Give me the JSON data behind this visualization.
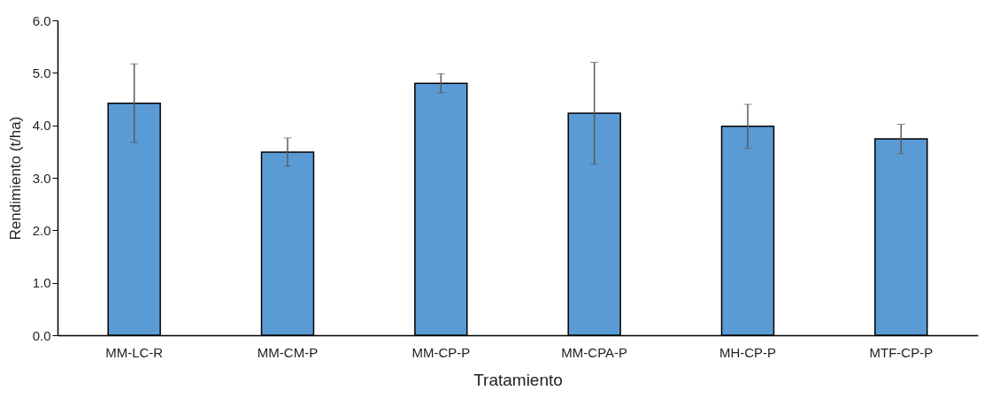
{
  "chart_data": {
    "type": "bar",
    "xlabel": "Tratamiento",
    "ylabel": "Rendimiento (t/ha)",
    "categories": [
      "MM-LC-R",
      "MM-CM-P",
      "MM-CP-P",
      "MM-CPA-P",
      "MH-CP-P",
      "MTF-CP-P"
    ],
    "values": [
      4.42,
      3.49,
      4.8,
      4.23,
      3.98,
      3.74
    ],
    "errors": [
      0.75,
      0.27,
      0.18,
      0.97,
      0.42,
      0.28
    ],
    "color": "#5b9bd5",
    "ylim": [
      0,
      6
    ],
    "yticks": [
      {
        "value": 0,
        "label": "0.0"
      },
      {
        "value": 1,
        "label": "1.0"
      },
      {
        "value": 2,
        "label": "2.0"
      },
      {
        "value": 3,
        "label": "3.0"
      },
      {
        "value": 4,
        "label": "4.0"
      },
      {
        "value": 5,
        "label": "5.0"
      },
      {
        "value": 6,
        "label": "6.0"
      }
    ],
    "grid": false
  }
}
